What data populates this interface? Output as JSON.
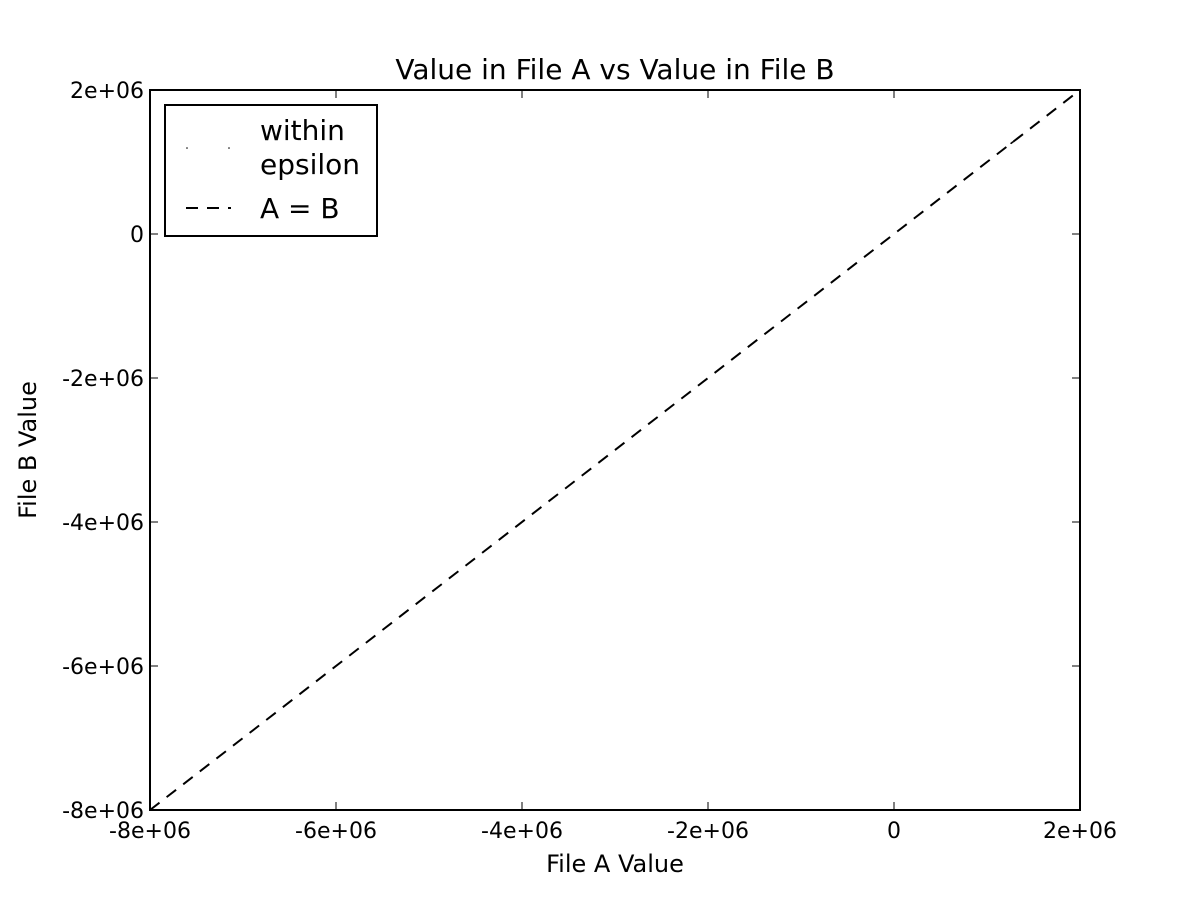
{
  "chart_data": {
    "type": "line",
    "title": "Value in File A vs Value in File B",
    "xlabel": "File A Value",
    "ylabel": "File B Value",
    "xlim": [
      -8000000,
      2000000
    ],
    "ylim": [
      -8000000,
      2000000
    ],
    "x_ticks": [
      -8000000,
      -6000000,
      -4000000,
      -2000000,
      0,
      2000000
    ],
    "x_tick_labels": [
      "-8e+06",
      "-6e+06",
      "-4e+06",
      "-2e+06",
      "0",
      "2e+06"
    ],
    "y_ticks": [
      -8000000,
      -6000000,
      -4000000,
      -2000000,
      0,
      2000000
    ],
    "y_tick_labels": [
      "-8e+06",
      "-6e+06",
      "-4e+06",
      "-2e+06",
      "0",
      "2e+06"
    ],
    "grid": false,
    "legend_position": "upper-left",
    "legend": {
      "within_line1": "within",
      "within_line2": "epsilon",
      "equal": "A = B"
    },
    "series": [
      {
        "name": "within epsilon",
        "style": "points",
        "color": "#000000",
        "x": [
          1260000,
          1270000,
          1280000
        ],
        "y": [
          1260000,
          1270000,
          1280000
        ]
      },
      {
        "name": "A = B",
        "style": "dashed",
        "color": "#000000",
        "x": [
          -8000000,
          2000000
        ],
        "y": [
          -8000000,
          2000000
        ]
      }
    ]
  }
}
